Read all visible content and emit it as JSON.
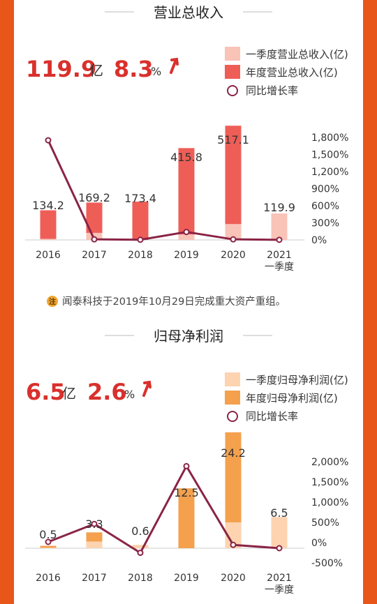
{
  "section1": {
    "title": "营业总收入",
    "big_value": "119.9",
    "big_unit": "亿",
    "pct_value": "8.3",
    "pct_unit": "%",
    "note_icon": "注",
    "note": "闻泰科技于2019年10月29日完成重大资产重组。"
  },
  "section2": {
    "title": "归母净利润",
    "big_value": "6.5",
    "big_unit": "亿",
    "pct_value": "2.6",
    "pct_unit": "%"
  },
  "colors": {
    "background": "#e8561a",
    "revenue_q1": "#f9c3b8",
    "revenue_annual": "#ee5e57",
    "profit_q1": "#fdd3b0",
    "profit_annual": "#f4a04d",
    "growth_line": "#8a2445",
    "highlight": "#d9302c"
  },
  "chart_data": [
    {
      "type": "bar",
      "title": "营业总收入",
      "categories": [
        "2016",
        "2017",
        "2018",
        "2019",
        "2020",
        "2021\n一季度"
      ],
      "series": [
        {
          "name": "一季度营业总收入(亿)",
          "values": [
            5,
            32,
            null,
            25,
            72,
            119.9
          ]
        },
        {
          "name": "年度营业总收入(亿)",
          "values": [
            134.2,
            169.2,
            173.4,
            415.8,
            517.1,
            null
          ]
        },
        {
          "name": "同比增长率",
          "axis": "right",
          "type": "line",
          "values": [
            1750,
            10,
            3,
            140,
            10,
            2
          ]
        }
      ],
      "data_labels": [
        "134.2",
        "169.2",
        "173.4",
        "415.8",
        "517.1",
        "119.9"
      ],
      "left_ylim": [
        0,
        600
      ],
      "right_axis": {
        "ticks": [
          "1,800%",
          "1,500%",
          "1,200%",
          "900%",
          "600%",
          "300%",
          "0%"
        ],
        "ylim": [
          0,
          1800
        ]
      },
      "legend_position": "top-right",
      "grid": false
    },
    {
      "type": "bar",
      "title": "归母净利润",
      "categories": [
        "2016",
        "2017",
        "2018",
        "2019",
        "2020",
        "2021\n一季度"
      ],
      "series": [
        {
          "name": "一季度归母净利润(亿)",
          "values": [
            0.1,
            1.4,
            0.7,
            null,
            5.4,
            6.5
          ]
        },
        {
          "name": "年度归母净利润(亿)",
          "values": [
            0.5,
            3.3,
            0.6,
            12.5,
            24.2,
            null
          ]
        },
        {
          "name": "同比增长率",
          "axis": "right",
          "type": "line",
          "values": [
            150,
            580,
            -110,
            1960,
            80,
            0
          ]
        }
      ],
      "data_labels": [
        "0.5",
        "3.3",
        "0.6",
        "12.5",
        "24.2",
        "6.5"
      ],
      "left_ylim": [
        -5,
        30
      ],
      "right_axis": {
        "ticks": [
          "2,000%",
          "1,500%",
          "1,000%",
          "500%",
          "0%",
          "-500%"
        ],
        "ylim": [
          -500,
          2000
        ]
      },
      "legend_position": "top-right",
      "grid": false
    }
  ]
}
